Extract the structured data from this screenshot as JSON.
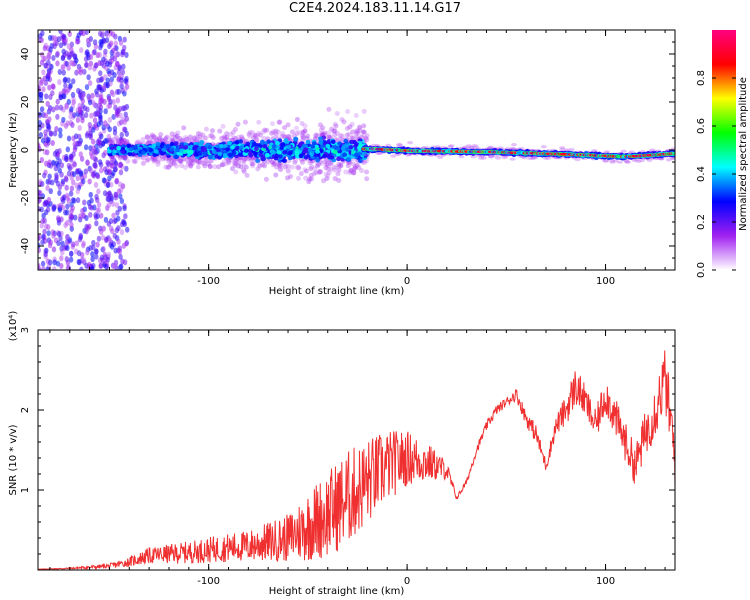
{
  "title": "C2E4.2024.183.11.14.G17",
  "colors": {
    "spectrogram_low": "#8a2be2",
    "spectrogram_mid": "#00e5a0",
    "spectrogram_high": "#ff2020",
    "snr_line": "#f03030",
    "axis": "#000000"
  },
  "chart_data": [
    {
      "type": "heatmap",
      "title": "C2E4.2024.183.11.14.G17",
      "xlabel": "Height of straight line (km)",
      "ylabel": "Frequency (Hz)",
      "xlim": [
        -186,
        135
      ],
      "ylim": [
        -50,
        50
      ],
      "xticks": [
        -100,
        0,
        100
      ],
      "yticks": [
        -40,
        -20,
        0,
        20,
        40
      ],
      "colorbar": {
        "label": "Normalized spectral amplitude",
        "range": [
          0,
          1
        ],
        "ticks": [
          "0.0",
          "0.2",
          "0.4",
          "0.6",
          "0.8"
        ],
        "colormap": [
          "#ffffff",
          "#a020f0",
          "#0000ff",
          "#00ffff",
          "#00ff00",
          "#ffff00",
          "#ff0000",
          "#ff0080"
        ]
      },
      "regions": [
        {
          "x": [
            -186,
            -145
          ],
          "freq_spread_hz": 50,
          "amplitude": 0.2
        },
        {
          "x": [
            -145,
            -20
          ],
          "freq_spread_hz": 10,
          "amplitude": 0.35
        },
        {
          "x": [
            -20,
            135
          ],
          "freq_spread_hz": 2,
          "amplitude": 0.6
        }
      ],
      "center_frequency": [
        {
          "x": -20,
          "f": 0.5
        },
        {
          "x": 0,
          "f": -0.3
        },
        {
          "x": 40,
          "f": -0.8
        },
        {
          "x": 80,
          "f": -1.8
        },
        {
          "x": 110,
          "f": -2.8
        },
        {
          "x": 135,
          "f": -1.5
        }
      ]
    },
    {
      "type": "line",
      "xlabel": "Height of straight line (km)",
      "ylabel": "SNR (10 * v/v)",
      "yscale_label": "(x10⁴)",
      "xlim": [
        -186,
        135
      ],
      "ylim": [
        0,
        3
      ],
      "xticks": [
        -100,
        0,
        100
      ],
      "yticks": [
        1,
        2,
        3
      ],
      "series": [
        {
          "x": [
            -186,
            -170,
            -150,
            -140,
            -130,
            -120,
            -110,
            -100,
            -90,
            -80,
            -70,
            -60,
            -50,
            -40,
            -30,
            -20,
            -10,
            0,
            10,
            20,
            25,
            30,
            35,
            40,
            45,
            50,
            55,
            60,
            65,
            70,
            75,
            80,
            85,
            90,
            95,
            100,
            105,
            110,
            115,
            120,
            125,
            130,
            135
          ],
          "y": [
            0.01,
            0.02,
            0.05,
            0.1,
            0.18,
            0.2,
            0.22,
            0.25,
            0.28,
            0.3,
            0.35,
            0.4,
            0.55,
            0.7,
            0.9,
            1.1,
            1.3,
            1.4,
            1.35,
            1.25,
            0.9,
            1.1,
            1.5,
            1.8,
            2.0,
            2.1,
            2.2,
            1.9,
            1.7,
            1.3,
            1.8,
            2.0,
            2.3,
            2.1,
            1.8,
            2.2,
            1.9,
            1.6,
            1.3,
            1.7,
            2.0,
            2.4,
            1.4
          ],
          "amplitude_noise": [
            0.0,
            0.01,
            0.03,
            0.06,
            0.1,
            0.12,
            0.14,
            0.16,
            0.18,
            0.2,
            0.25,
            0.3,
            0.45,
            0.55,
            0.6,
            0.55,
            0.45,
            0.35,
            0.25,
            0.12,
            0.03,
            0.04,
            0.05,
            0.06,
            0.06,
            0.06,
            0.08,
            0.1,
            0.12,
            0.08,
            0.12,
            0.2,
            0.25,
            0.2,
            0.2,
            0.25,
            0.25,
            0.25,
            0.25,
            0.3,
            0.35,
            0.4,
            0.4
          ]
        }
      ]
    }
  ]
}
